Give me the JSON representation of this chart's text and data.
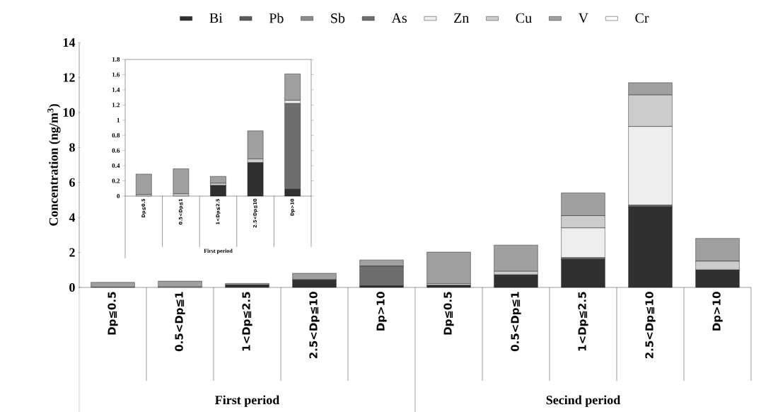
{
  "chart_data": [
    {
      "type": "bar",
      "stacked": true,
      "legend": "top",
      "ylabel": "Concentration (ng/m$^{3}$)",
      "ylim": [
        0,
        14
      ],
      "yticks": [
        0,
        2,
        4,
        6,
        8,
        10,
        12,
        14
      ],
      "categories": [
        "Dp≦0.5",
        "0.5<Dp≦1",
        "1<Dp≦2.5",
        "2.5<Dp≦10",
        "Dp>10",
        "Dp≦0.5",
        "0.5<Dp≦1",
        "1<Dp≦2.5",
        "2.5<Dp≦10",
        "Dp>10"
      ],
      "annotations": [
        "First period",
        "Secind period"
      ],
      "series": [
        {
          "name": "Bi",
          "color": "#303030",
          "values": [
            null,
            null,
            0.14,
            0.44,
            0.09,
            0.12,
            0.72,
            1.6,
            4.6,
            1.0
          ]
        },
        {
          "name": "Pb",
          "color": "#5a5a5a",
          "values": [
            null,
            null,
            null,
            null,
            null,
            null,
            null,
            null,
            null,
            null
          ]
        },
        {
          "name": "Sb",
          "color": "#8c8c8c",
          "values": [
            null,
            null,
            null,
            null,
            null,
            null,
            null,
            null,
            null,
            null
          ]
        },
        {
          "name": "As",
          "color": "#6e6e6e",
          "values": [
            null,
            null,
            null,
            null,
            1.13,
            null,
            null,
            0.1,
            0.1,
            null
          ]
        },
        {
          "name": "Zn",
          "color": "#eeeeee",
          "values": [
            null,
            null,
            null,
            null,
            null,
            null,
            null,
            1.7,
            4.5,
            null
          ]
        },
        {
          "name": "Cu",
          "color": "#cccccc",
          "values": [
            0.02,
            0.03,
            null,
            null,
            null,
            0.1,
            0.2,
            0.7,
            1.8,
            0.5
          ]
        },
        {
          "name": "V",
          "color": "#a0a0a0",
          "values": [
            0.27,
            0.33,
            0.09,
            0.37,
            0.35,
            1.8,
            1.5,
            1.3,
            0.7,
            1.3
          ]
        },
        {
          "name": "Cr",
          "color": "#ffffff",
          "values": [
            null,
            null,
            null,
            null,
            null,
            null,
            null,
            null,
            null,
            null
          ]
        }
      ]
    },
    {
      "type": "bar",
      "stacked": true,
      "ylim": [
        0,
        1.8
      ],
      "yticks": [
        0,
        0.2,
        0.4,
        0.6,
        0.8,
        1,
        1.2,
        1.4,
        1.6,
        1.8
      ],
      "categories": [
        "Dp≦0.5",
        "0.5<Dp≦1",
        "1<Dp≦2.5",
        "2.5<Dp≦10",
        "Dp>10"
      ],
      "annotations": [
        "First period"
      ],
      "series": [
        {
          "color": "#303030",
          "values": [
            null,
            null,
            0.14,
            0.44,
            0.09
          ]
        },
        {
          "color": "#6e6e6e",
          "values": [
            null,
            null,
            null,
            null,
            1.13
          ]
        },
        {
          "color": "#eeeeee",
          "values": [
            null,
            null,
            null,
            null,
            0.04
          ]
        },
        {
          "color": "#cccccc",
          "values": [
            0.02,
            0.03,
            0.03,
            0.05,
            null
          ]
        },
        {
          "color": "#a0a0a0",
          "values": [
            0.27,
            0.33,
            0.09,
            0.37,
            0.35
          ]
        }
      ]
    }
  ]
}
